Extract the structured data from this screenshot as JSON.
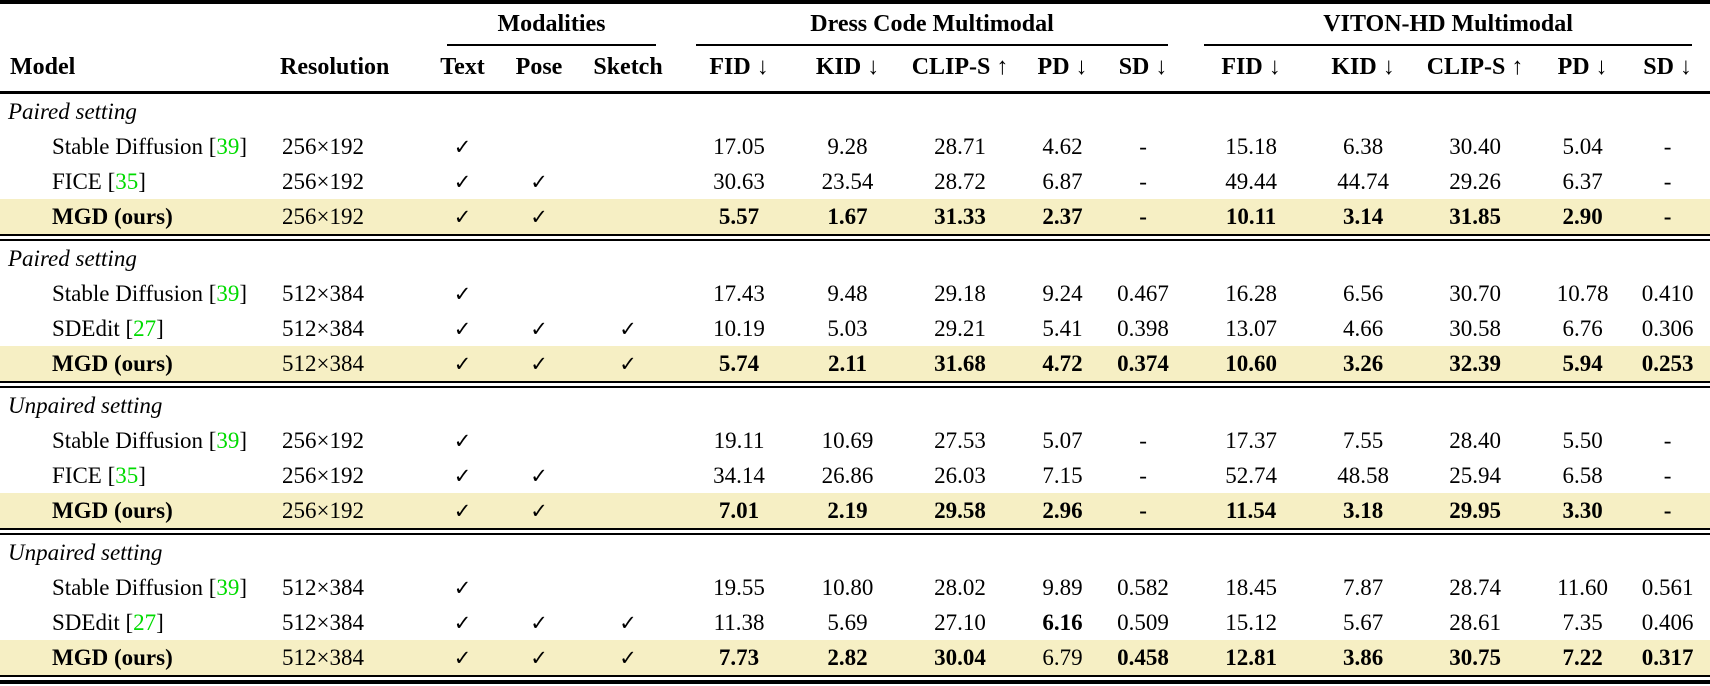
{
  "header": {
    "model": "Model",
    "resolution": "Resolution",
    "groups": [
      {
        "label": "Modalities",
        "columns": [
          "Text",
          "Pose",
          "Sketch"
        ]
      },
      {
        "label": "Dress Code Multimodal",
        "columns": [
          "FID ↓",
          "KID ↓",
          "CLIP-S ↑",
          "PD ↓",
          "SD ↓"
        ]
      },
      {
        "label": "VITON-HD Multimodal",
        "columns": [
          "FID ↓",
          "KID ↓",
          "CLIP-S ↑",
          "PD ↓",
          "SD ↓"
        ]
      }
    ]
  },
  "checkmark": "✓",
  "colors": {
    "highlight": "#f6efc4",
    "citation_green": "#00db00"
  },
  "sections": [
    {
      "label": "Paired setting",
      "rows": [
        {
          "model": "Stable Diffusion",
          "cite": "39",
          "resolution": "256×192",
          "modalities": [
            1,
            0,
            0
          ],
          "highlight": false,
          "model_bold": false,
          "values": [
            "17.05",
            "9.28",
            "28.71",
            "4.62",
            "-",
            "15.18",
            "6.38",
            "30.40",
            "5.04",
            "-"
          ],
          "bold": [
            0,
            0,
            0,
            0,
            0,
            0,
            0,
            0,
            0,
            0
          ]
        },
        {
          "model": "FICE",
          "cite": "35",
          "resolution": "256×192",
          "modalities": [
            1,
            1,
            0
          ],
          "highlight": false,
          "model_bold": false,
          "values": [
            "30.63",
            "23.54",
            "28.72",
            "6.87",
            "-",
            "49.44",
            "44.74",
            "29.26",
            "6.37",
            "-"
          ],
          "bold": [
            0,
            0,
            0,
            0,
            0,
            0,
            0,
            0,
            0,
            0
          ]
        },
        {
          "model": "MGD (ours)",
          "cite": "",
          "resolution": "256×192",
          "modalities": [
            1,
            1,
            0
          ],
          "highlight": true,
          "model_bold": true,
          "values": [
            "5.57",
            "1.67",
            "31.33",
            "2.37",
            "-",
            "10.11",
            "3.14",
            "31.85",
            "2.90",
            "-"
          ],
          "bold": [
            1,
            1,
            1,
            1,
            1,
            1,
            1,
            1,
            1,
            1
          ]
        }
      ]
    },
    {
      "label": "Paired setting",
      "rows": [
        {
          "model": "Stable Diffusion",
          "cite": "39",
          "resolution": "512×384",
          "modalities": [
            1,
            0,
            0
          ],
          "highlight": false,
          "model_bold": false,
          "values": [
            "17.43",
            "9.48",
            "29.18",
            "9.24",
            "0.467",
            "16.28",
            "6.56",
            "30.70",
            "10.78",
            "0.410"
          ],
          "bold": [
            0,
            0,
            0,
            0,
            0,
            0,
            0,
            0,
            0,
            0
          ]
        },
        {
          "model": "SDEdit",
          "cite": "27",
          "resolution": "512×384",
          "modalities": [
            1,
            1,
            1
          ],
          "highlight": false,
          "model_bold": false,
          "values": [
            "10.19",
            "5.03",
            "29.21",
            "5.41",
            "0.398",
            "13.07",
            "4.66",
            "30.58",
            "6.76",
            "0.306"
          ],
          "bold": [
            0,
            0,
            0,
            0,
            0,
            0,
            0,
            0,
            0,
            0
          ]
        },
        {
          "model": "MGD (ours)",
          "cite": "",
          "resolution": "512×384",
          "modalities": [
            1,
            1,
            1
          ],
          "highlight": true,
          "model_bold": true,
          "values": [
            "5.74",
            "2.11",
            "31.68",
            "4.72",
            "0.374",
            "10.60",
            "3.26",
            "32.39",
            "5.94",
            "0.253"
          ],
          "bold": [
            1,
            1,
            1,
            1,
            1,
            1,
            1,
            1,
            1,
            1
          ]
        }
      ]
    },
    {
      "label": "Unpaired setting",
      "rows": [
        {
          "model": "Stable Diffusion",
          "cite": "39",
          "resolution": "256×192",
          "modalities": [
            1,
            0,
            0
          ],
          "highlight": false,
          "model_bold": false,
          "values": [
            "19.11",
            "10.69",
            "27.53",
            "5.07",
            "-",
            "17.37",
            "7.55",
            "28.40",
            "5.50",
            "-"
          ],
          "bold": [
            0,
            0,
            0,
            0,
            0,
            0,
            0,
            0,
            0,
            0
          ]
        },
        {
          "model": "FICE",
          "cite": "35",
          "resolution": "256×192",
          "modalities": [
            1,
            1,
            0
          ],
          "highlight": false,
          "model_bold": false,
          "values": [
            "34.14",
            "26.86",
            "26.03",
            "7.15",
            "-",
            "52.74",
            "48.58",
            "25.94",
            "6.58",
            "-"
          ],
          "bold": [
            0,
            0,
            0,
            0,
            0,
            0,
            0,
            0,
            0,
            0
          ]
        },
        {
          "model": "MGD (ours)",
          "cite": "",
          "resolution": "256×192",
          "modalities": [
            1,
            1,
            0
          ],
          "highlight": true,
          "model_bold": true,
          "values": [
            "7.01",
            "2.19",
            "29.58",
            "2.96",
            "-",
            "11.54",
            "3.18",
            "29.95",
            "3.30",
            "-"
          ],
          "bold": [
            1,
            1,
            1,
            1,
            1,
            1,
            1,
            1,
            1,
            1
          ]
        }
      ]
    },
    {
      "label": "Unpaired setting",
      "rows": [
        {
          "model": "Stable Diffusion",
          "cite": "39",
          "resolution": "512×384",
          "modalities": [
            1,
            0,
            0
          ],
          "highlight": false,
          "model_bold": false,
          "values": [
            "19.55",
            "10.80",
            "28.02",
            "9.89",
            "0.582",
            "18.45",
            "7.87",
            "28.74",
            "11.60",
            "0.561"
          ],
          "bold": [
            0,
            0,
            0,
            0,
            0,
            0,
            0,
            0,
            0,
            0
          ]
        },
        {
          "model": "SDEdit",
          "cite": "27",
          "resolution": "512×384",
          "modalities": [
            1,
            1,
            1
          ],
          "highlight": false,
          "model_bold": false,
          "values": [
            "11.38",
            "5.69",
            "27.10",
            "6.16",
            "0.509",
            "15.12",
            "5.67",
            "28.61",
            "7.35",
            "0.406"
          ],
          "bold": [
            0,
            0,
            0,
            1,
            0,
            0,
            0,
            0,
            0,
            0
          ]
        },
        {
          "model": "MGD (ours)",
          "cite": "",
          "resolution": "512×384",
          "modalities": [
            1,
            1,
            1
          ],
          "highlight": true,
          "model_bold": true,
          "values": [
            "7.73",
            "2.82",
            "30.04",
            "6.79",
            "0.458",
            "12.81",
            "3.86",
            "30.75",
            "7.22",
            "0.317"
          ],
          "bold": [
            1,
            1,
            1,
            0,
            1,
            1,
            1,
            1,
            1,
            1
          ]
        }
      ]
    }
  ]
}
